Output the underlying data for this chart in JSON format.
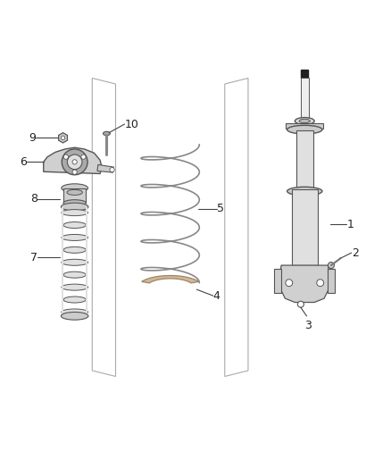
{
  "background_color": "#ffffff",
  "line_color": "#555555",
  "label_color": "#222222",
  "figsize": [
    4.38,
    5.33
  ],
  "dpi": 100
}
